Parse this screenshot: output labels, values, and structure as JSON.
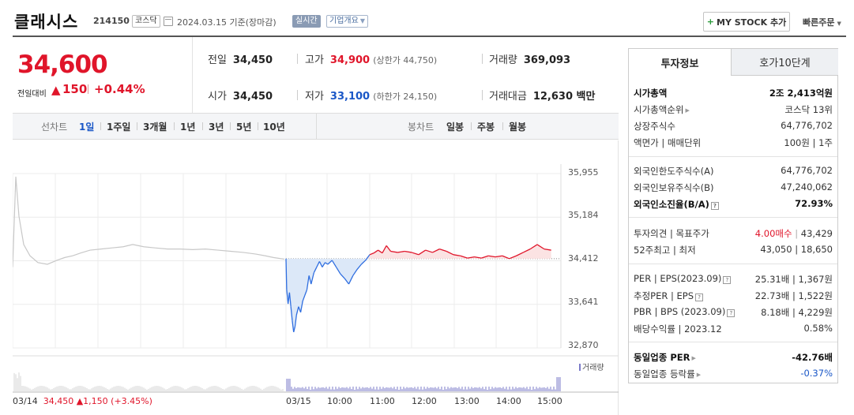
{
  "header": {
    "stock_name": "클래시스",
    "stock_code": "214150",
    "market": "코스닥",
    "base_date": "2024.03.15 기준(장마감)",
    "realtime_label": "실시간",
    "overview_label": "기업개요",
    "mystock_label": "MY STOCK 추가",
    "quick_order_label": "빠른주문"
  },
  "price": {
    "current": "34,600",
    "change_label": "전일대비",
    "change_value": "150",
    "change_pct": "+0.44%",
    "up_color": "#e0152a",
    "down_color": "#1a57c7"
  },
  "stats": {
    "prev_label": "전일",
    "prev_value": "34,450",
    "high_label": "고가",
    "high_value": "34,900",
    "upper_limit": "(상한가 44,750)",
    "volume_label": "거래량",
    "volume_value": "369,093",
    "open_label": "시가",
    "open_value": "34,450",
    "low_label": "저가",
    "low_value": "33,100",
    "lower_limit": "(하한가 24,150)",
    "amount_label": "거래대금",
    "amount_value": "12,630 백만"
  },
  "period_tabs": {
    "line_label": "선차트",
    "line": [
      "1일",
      "1주일",
      "3개월",
      "1년",
      "3년",
      "5년",
      "10년"
    ],
    "active": "1일",
    "candle_label": "봉차트",
    "candle": [
      "일봉",
      "주봉",
      "월봉"
    ]
  },
  "chart": {
    "y_ticks": [
      "35,955",
      "35,184",
      "34,412",
      "33,641",
      "32,870"
    ],
    "x_ticks": [
      "03/15",
      "10:00",
      "11:00",
      "12:00",
      "13:00",
      "14:00",
      "15:00"
    ],
    "volume_label": "거래량",
    "prev_day": "03/14",
    "prev_close": "34,450",
    "prev_change": "▲1,150 (+3.45%)"
  },
  "chart_data": {
    "type": "line",
    "title": "",
    "ylim": [
      32870,
      35955
    ],
    "baseline": 34450,
    "prev_day_series": [
      [
        0,
        34300
      ],
      [
        4,
        35900
      ],
      [
        8,
        35200
      ],
      [
        14,
        34700
      ],
      [
        22,
        34500
      ],
      [
        32,
        34380
      ],
      [
        44,
        34350
      ],
      [
        56,
        34420
      ],
      [
        66,
        34470
      ],
      [
        76,
        34500
      ],
      [
        86,
        34550
      ],
      [
        98,
        34600
      ],
      [
        112,
        34620
      ],
      [
        126,
        34640
      ],
      [
        140,
        34660
      ],
      [
        152,
        34700
      ],
      [
        166,
        34660
      ],
      [
        180,
        34640
      ],
      [
        196,
        34620
      ],
      [
        212,
        34620
      ],
      [
        228,
        34610
      ],
      [
        244,
        34620
      ],
      [
        260,
        34600
      ],
      [
        276,
        34580
      ],
      [
        292,
        34560
      ],
      [
        308,
        34530
      ],
      [
        320,
        34500
      ],
      [
        330,
        34470
      ],
      [
        344,
        34440
      ]
    ],
    "today_x_labels": [
      "09:00",
      "10:00",
      "11:00",
      "12:00",
      "13:00",
      "14:00",
      "15:00"
    ],
    "today_series": [
      [
        "09:00",
        34450
      ],
      [
        "09:01",
        33900
      ],
      [
        "09:03",
        33650
      ],
      [
        "09:05",
        33850
      ],
      [
        "09:07",
        33600
      ],
      [
        "09:09",
        33350
      ],
      [
        "09:11",
        33150
      ],
      [
        "09:13",
        33250
      ],
      [
        "09:15",
        33450
      ],
      [
        "09:18",
        33600
      ],
      [
        "09:21",
        33500
      ],
      [
        "09:24",
        33700
      ],
      [
        "09:27",
        33800
      ],
      [
        "09:30",
        33900
      ],
      [
        "09:33",
        34150
      ],
      [
        "09:36",
        34000
      ],
      [
        "09:40",
        34200
      ],
      [
        "09:44",
        34300
      ],
      [
        "09:48",
        34400
      ],
      [
        "09:52",
        34300
      ],
      [
        "09:56",
        34380
      ],
      [
        "10:00",
        34350
      ],
      [
        "10:06",
        34420
      ],
      [
        "10:12",
        34300
      ],
      [
        "10:18",
        34180
      ],
      [
        "10:24",
        34100
      ],
      [
        "10:30",
        34000
      ],
      [
        "10:36",
        34150
      ],
      [
        "10:42",
        34260
      ],
      [
        "10:48",
        34350
      ],
      [
        "10:54",
        34420
      ],
      [
        "11:00",
        34520
      ],
      [
        "11:06",
        34550
      ],
      [
        "11:12",
        34600
      ],
      [
        "11:18",
        34550
      ],
      [
        "11:24",
        34680
      ],
      [
        "11:30",
        34580
      ],
      [
        "11:40",
        34560
      ],
      [
        "11:50",
        34580
      ],
      [
        "12:00",
        34560
      ],
      [
        "12:10",
        34520
      ],
      [
        "12:20",
        34600
      ],
      [
        "12:30",
        34560
      ],
      [
        "12:40",
        34620
      ],
      [
        "12:50",
        34580
      ],
      [
        "13:00",
        34520
      ],
      [
        "13:10",
        34500
      ],
      [
        "13:20",
        34460
      ],
      [
        "13:30",
        34480
      ],
      [
        "13:40",
        34460
      ],
      [
        "13:50",
        34500
      ],
      [
        "14:00",
        34480
      ],
      [
        "14:10",
        34500
      ],
      [
        "14:20",
        34450
      ],
      [
        "14:30",
        34500
      ],
      [
        "14:40",
        34560
      ],
      [
        "14:50",
        34620
      ],
      [
        "15:00",
        34700
      ],
      [
        "15:10",
        34620
      ],
      [
        "15:20",
        34600
      ]
    ]
  },
  "side_panel": {
    "tabs": [
      "투자정보",
      "호가10단계"
    ],
    "rows1": [
      {
        "k": "시가총액",
        "v": "2조 2,413억원"
      },
      {
        "k": "시가총액순위",
        "v": "코스닥 13위"
      },
      {
        "k": "상장주식수",
        "v": "64,776,702"
      },
      {
        "k": "액면가 | 매매단위",
        "v": "100원 | 1주"
      }
    ],
    "rows2": [
      {
        "k": "외국인한도주식수(A)",
        "v": "64,776,702"
      },
      {
        "k": "외국인보유주식수(B)",
        "v": "47,240,062"
      },
      {
        "k": "외국인소진율(B/A)",
        "v": "72.93%"
      }
    ],
    "rows3": [
      {
        "k": "투자의견 | 목표주가",
        "v1": "4.00매수",
        "v2": "43,429"
      },
      {
        "k": "52주최고 | 최저",
        "v": "43,050 | 18,650"
      }
    ],
    "rows4": [
      {
        "k": "PER | EPS(2023.09)",
        "v": "25.31배 | 1,367원"
      },
      {
        "k": "추정PER | EPS",
        "v": "22.73배 | 1,522원"
      },
      {
        "k": "PBR | BPS (2023.09)",
        "v": "8.18배 | 4,229원"
      },
      {
        "k": "배당수익률 | 2023.12",
        "v": "0.58%"
      }
    ],
    "rows5": [
      {
        "k": "동일업종 PER",
        "v": "-42.76배"
      },
      {
        "k": "동일업종 등락률",
        "v": "-0.37%"
      }
    ]
  }
}
